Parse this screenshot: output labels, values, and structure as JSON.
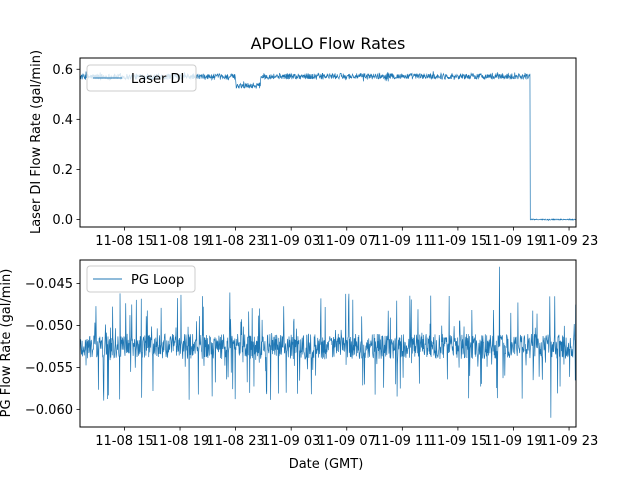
{
  "chart_data": [
    {
      "type": "line",
      "title": "APOLLO Flow Rates",
      "xlabel": "",
      "ylabel": "Laser DI Flow Rate (gal/min)",
      "legend": {
        "entries": [
          "Laser DI"
        ],
        "placement": "top-left"
      },
      "x_ticks": [
        "11-08 15",
        "11-08 19",
        "11-08 23",
        "11-09 03",
        "11-09 07",
        "11-09 11",
        "11-09 15",
        "11-09 19",
        "11-09 23"
      ],
      "y_ticks": [
        "0.0",
        "0.2",
        "0.4",
        "0.6"
      ],
      "x_range_hours": [
        11.8,
        47.5
      ],
      "ylim": [
        -0.03,
        0.645
      ],
      "series": [
        {
          "name": "Laser DI",
          "color": "#1f77b4",
          "segments": [
            {
              "start_hour": 11.8,
              "end_hour": 23.0,
              "mean": 0.57,
              "noise": 0.012
            },
            {
              "start_hour": 23.0,
              "end_hour": 24.8,
              "mean": 0.535,
              "noise": 0.012
            },
            {
              "start_hour": 24.8,
              "end_hour": 44.2,
              "mean": 0.572,
              "noise": 0.012
            },
            {
              "start_hour": 44.2,
              "end_hour": 47.5,
              "mean": 0.0,
              "noise": 0.002
            }
          ]
        }
      ]
    },
    {
      "type": "line",
      "title": "",
      "xlabel": "Date (GMT)",
      "ylabel": "PG Flow Rate (gal/min)",
      "legend": {
        "entries": [
          "PG Loop"
        ],
        "placement": "top-left"
      },
      "x_ticks": [
        "11-08 15",
        "11-08 19",
        "11-08 23",
        "11-09 03",
        "11-09 07",
        "11-09 11",
        "11-09 15",
        "11-09 19",
        "11-09 23"
      ],
      "y_ticks": [
        "−0.045",
        "−0.050",
        "−0.055",
        "−0.060"
      ],
      "x_range_hours": [
        11.8,
        47.5
      ],
      "ylim": [
        -0.0621,
        -0.0422
      ],
      "series": [
        {
          "name": "PG Loop",
          "color": "#1f77b4",
          "band": [
            -0.054,
            -0.051
          ],
          "spike_range": [
            -0.059,
            -0.046
          ],
          "extremes": [
            {
              "hour": 45.7,
              "value": -0.061
            },
            {
              "hour": 42.0,
              "value": -0.043
            }
          ]
        }
      ]
    }
  ]
}
